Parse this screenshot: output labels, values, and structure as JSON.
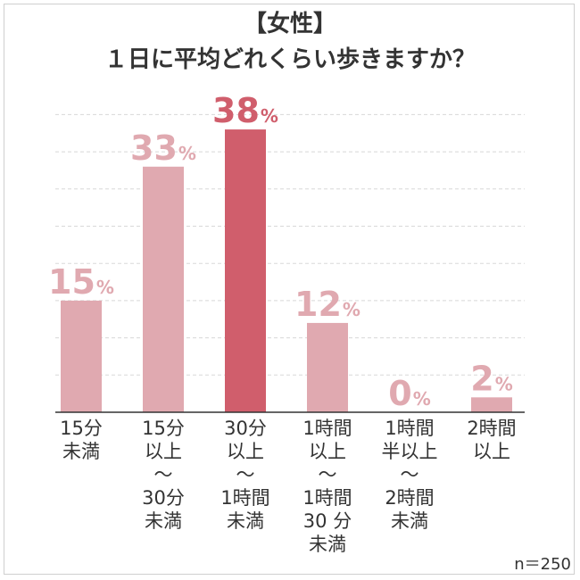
{
  "title_line1": "【女性】",
  "title_line2": "１日に平均どれくらい歩きますか？",
  "sample_note": "n＝250",
  "colors": {
    "bar": "#e0a9b0",
    "highlight": "#d05e6c",
    "grid": "#d8d8d8",
    "axis": "#333333"
  },
  "chart_data": {
    "type": "bar",
    "title": "【女性】１日に平均どれくらい歩きますか？",
    "categories": [
      [
        "15分",
        "未満"
      ],
      [
        "15分",
        "以上",
        "〜",
        "30分",
        "未満"
      ],
      [
        "30分",
        "以上",
        "〜",
        "1時間",
        "未満"
      ],
      [
        "1時間",
        "以上",
        "〜",
        "1時間",
        "30 分",
        "未満"
      ],
      [
        "1時間",
        "半以上",
        "〜",
        "2時間",
        "未満"
      ],
      [
        "2時間",
        "以上"
      ]
    ],
    "values": [
      15,
      33,
      38,
      12,
      0,
      2
    ],
    "value_suffix": "%",
    "highlight_index": 2,
    "ylim": [
      0,
      40
    ],
    "grid": true,
    "xlabel": "",
    "ylabel": ""
  }
}
